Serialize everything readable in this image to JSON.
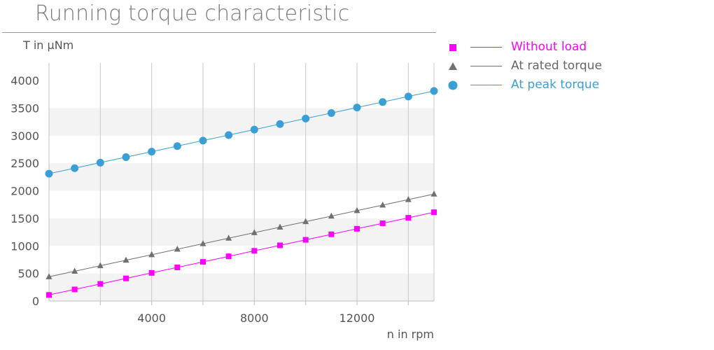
{
  "chart_data": {
    "type": "line",
    "title": "Running torque characteristic",
    "xlabel": "n in rpm",
    "ylabel": "T in μNm",
    "xlim": [
      0,
      15000
    ],
    "ylim": [
      0,
      4000
    ],
    "x_ticks": [
      4000,
      8000,
      12000
    ],
    "y_ticks": [
      0,
      500,
      1000,
      1500,
      2000,
      2500,
      3000,
      3500,
      4000
    ],
    "grid": "vertical lines at every 2000 rpm, alternating horizontal bands every 500 μNm",
    "legend_position": "right-top",
    "x": [
      0,
      1000,
      2000,
      3000,
      4000,
      5000,
      6000,
      7000,
      8000,
      9000,
      10000,
      11000,
      12000,
      13000,
      14000,
      15000
    ],
    "series": [
      {
        "name": "Without load",
        "color": "#ff00ff",
        "marker": "square",
        "values": [
          110,
          210,
          310,
          410,
          510,
          610,
          710,
          810,
          910,
          1010,
          1110,
          1210,
          1310,
          1410,
          1510,
          1610
        ]
      },
      {
        "name": "At rated torque",
        "color": "#707070",
        "marker": "triangle",
        "values": [
          440,
          540,
          640,
          740,
          840,
          940,
          1040,
          1140,
          1240,
          1340,
          1440,
          1540,
          1640,
          1740,
          1840,
          1940
        ]
      },
      {
        "name": "At peak torque",
        "color": "#3a9fd4",
        "marker": "circle",
        "values": [
          2310,
          2410,
          2510,
          2610,
          2710,
          2810,
          2910,
          3010,
          3110,
          3210,
          3310,
          3410,
          3510,
          3610,
          3710,
          3810
        ]
      }
    ]
  }
}
